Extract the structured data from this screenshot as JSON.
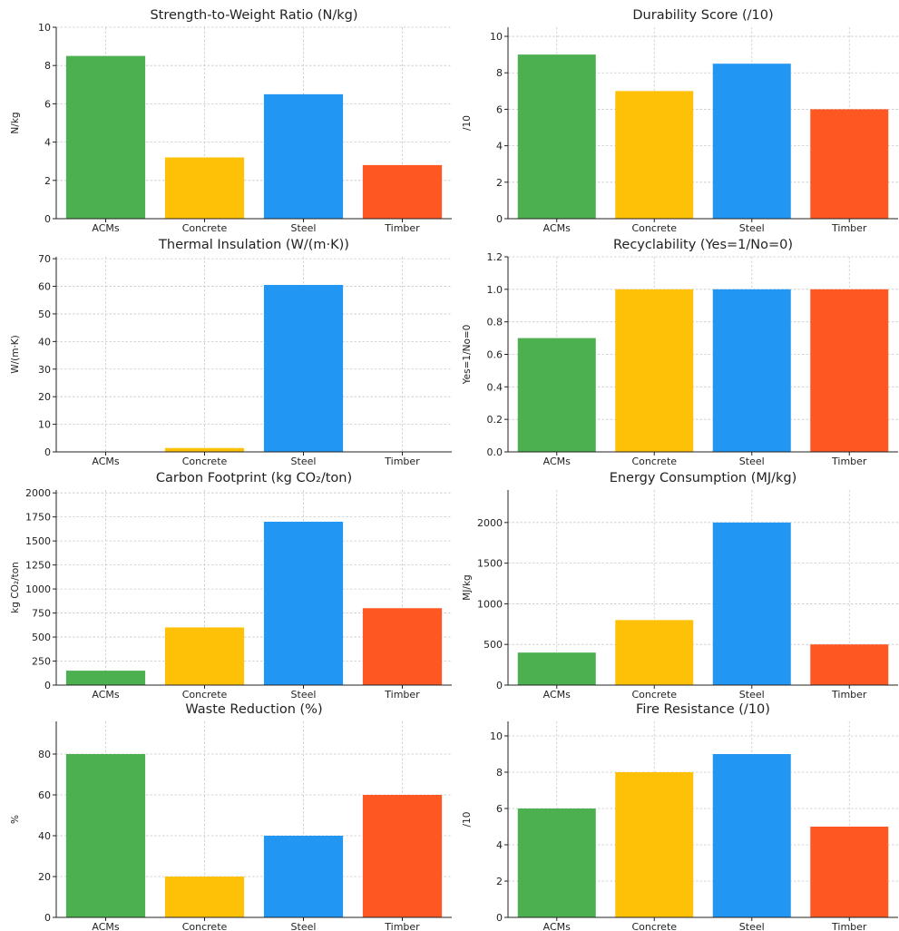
{
  "palette": {
    "ACMs": "#4CAF50",
    "Concrete": "#FFC107",
    "Steel": "#2196F3",
    "Timber": "#FF5722"
  },
  "chart_data": [
    {
      "type": "bar",
      "title": "Strength-to-Weight Ratio (N/kg)",
      "xlabel": "",
      "ylabel": "N/kg",
      "categories": [
        "ACMs",
        "Concrete",
        "Steel",
        "Timber"
      ],
      "values": [
        8.5,
        3.2,
        6.5,
        2.8
      ],
      "ylim": [
        0,
        10
      ],
      "yticks": [
        0,
        2,
        4,
        6,
        8,
        10
      ],
      "grid": true
    },
    {
      "type": "bar",
      "title": "Durability Score (/10)",
      "xlabel": "",
      "ylabel": "/10",
      "categories": [
        "ACMs",
        "Concrete",
        "Steel",
        "Timber"
      ],
      "values": [
        9,
        7,
        8.5,
        6
      ],
      "ylim": [
        0,
        10.5
      ],
      "yticks": [
        0,
        2,
        4,
        6,
        8,
        10
      ],
      "grid": true
    },
    {
      "type": "bar",
      "title": "Thermal Insulation (W/(m·K))",
      "xlabel": "",
      "ylabel": "W/(m·K)",
      "categories": [
        "ACMs",
        "Concrete",
        "Steel",
        "Timber"
      ],
      "values": [
        0.1,
        1.4,
        60.5,
        0.13
      ],
      "ylim": [
        0,
        70.7
      ],
      "yticks": [
        0,
        10,
        20,
        30,
        40,
        50,
        60,
        70
      ],
      "grid": true
    },
    {
      "type": "bar",
      "title": "Recyclability (Yes=1/No=0)",
      "xlabel": "",
      "ylabel": "Yes=1/No=0",
      "categories": [
        "ACMs",
        "Concrete",
        "Steel",
        "Timber"
      ],
      "values": [
        0.7,
        1.0,
        1.0,
        1.0
      ],
      "ylim": [
        0,
        1.2
      ],
      "yticks": [
        "0.0",
        "0.2",
        "0.4",
        "0.6",
        "0.8",
        "1.0",
        "1.2"
      ],
      "grid": true
    },
    {
      "type": "bar",
      "title": "Carbon Footprint (kg CO₂/ton)",
      "xlabel": "",
      "ylabel": "kg CO₂/ton",
      "categories": [
        "ACMs",
        "Concrete",
        "Steel",
        "Timber"
      ],
      "values": [
        150,
        600,
        1700,
        800
      ],
      "ylim": [
        0,
        2030
      ],
      "yticks": [
        0,
        250,
        500,
        750,
        1000,
        1250,
        1500,
        1750,
        2000
      ],
      "grid": true
    },
    {
      "type": "bar",
      "title": "Energy Consumption (MJ/kg)",
      "xlabel": "",
      "ylabel": "MJ/kg",
      "categories": [
        "ACMs",
        "Concrete",
        "Steel",
        "Timber"
      ],
      "values": [
        400,
        800,
        2000,
        500
      ],
      "ylim": [
        0,
        2400
      ],
      "yticks": [
        0,
        500,
        1000,
        1500,
        2000
      ],
      "grid": true
    },
    {
      "type": "bar",
      "title": "Waste Reduction (%)",
      "xlabel": "",
      "ylabel": "%",
      "categories": [
        "ACMs",
        "Concrete",
        "Steel",
        "Timber"
      ],
      "values": [
        80,
        20,
        40,
        60
      ],
      "ylim": [
        0,
        96
      ],
      "yticks": [
        0,
        20,
        40,
        60,
        80
      ],
      "grid": true
    },
    {
      "type": "bar",
      "title": "Fire Resistance (/10)",
      "xlabel": "",
      "ylabel": "/10",
      "categories": [
        "ACMs",
        "Concrete",
        "Steel",
        "Timber"
      ],
      "values": [
        6,
        8,
        9,
        5
      ],
      "ylim": [
        0,
        10.8
      ],
      "yticks": [
        0,
        2,
        4,
        6,
        8,
        10
      ],
      "grid": true
    }
  ]
}
